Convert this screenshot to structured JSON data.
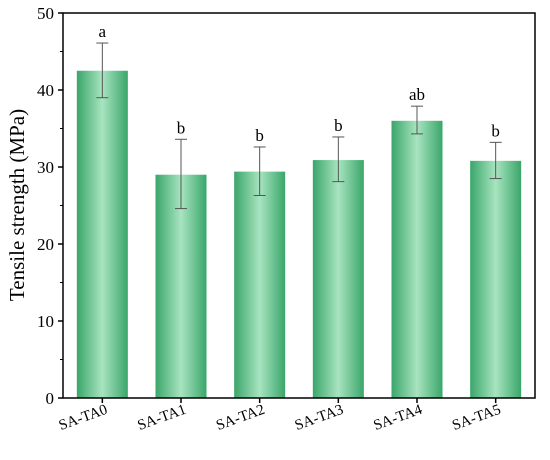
{
  "chart_data": {
    "type": "bar",
    "categories": [
      "SA-TA0",
      "SA-TA1",
      "SA-TA2",
      "SA-TA3",
      "SA-TA4",
      "SA-TA5"
    ],
    "values": [
      42.5,
      29.0,
      29.4,
      30.9,
      36.0,
      30.8
    ],
    "error_low": [
      39.0,
      24.6,
      26.3,
      28.1,
      34.3,
      28.5
    ],
    "error_high": [
      46.1,
      33.6,
      32.6,
      33.9,
      37.9,
      33.2
    ],
    "significance_labels": [
      "a",
      "b",
      "b",
      "b",
      "ab",
      "b"
    ],
    "title": "",
    "xlabel": "",
    "ylabel": "Tensile strength (MPa)",
    "ylim": [
      0,
      50
    ],
    "yticks": [
      "0",
      "10",
      "20",
      "30",
      "40",
      "50"
    ],
    "grid": false,
    "bar_color": "#3aa66a",
    "bar_highlight": "#a8e4c0"
  }
}
